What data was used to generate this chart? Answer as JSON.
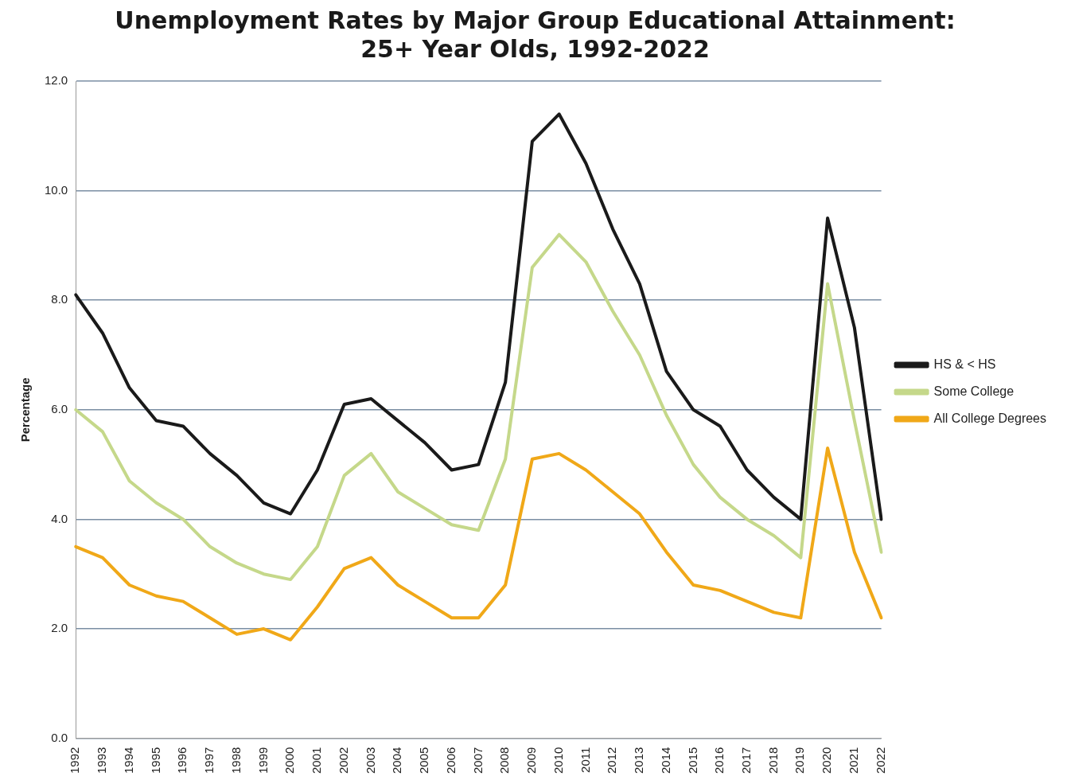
{
  "chart_data": {
    "type": "line",
    "title": [
      "Unemployment Rates by Major Group Educational Attainment:",
      "25+ Year Olds, 1992-2022"
    ],
    "ylabel": "Percentage",
    "categories": [
      "1992",
      "1993",
      "1994",
      "1995",
      "1996",
      "1997",
      "1998",
      "1999",
      "2000",
      "2001",
      "2002",
      "2003",
      "2004",
      "2005",
      "2006",
      "2007",
      "2008",
      "2009",
      "2010",
      "2011",
      "2012",
      "2013",
      "2014",
      "2015",
      "2016",
      "2017",
      "2018",
      "2019",
      "2020",
      "2021",
      "2022"
    ],
    "series": [
      {
        "name": "HS & < HS",
        "color": "#1a1a1a",
        "values": [
          8.1,
          7.4,
          6.4,
          5.8,
          5.7,
          5.2,
          4.8,
          4.3,
          4.1,
          4.9,
          6.1,
          6.2,
          5.8,
          5.4,
          4.9,
          5.0,
          6.5,
          10.9,
          11.4,
          10.5,
          9.3,
          8.3,
          6.7,
          6.0,
          5.7,
          4.9,
          4.4,
          4.0,
          9.5,
          7.5,
          4.0
        ]
      },
      {
        "name": "Some College",
        "color": "#c5d88a",
        "values": [
          6.0,
          5.6,
          4.7,
          4.3,
          4.0,
          3.5,
          3.2,
          3.0,
          2.9,
          3.5,
          4.8,
          5.2,
          4.5,
          4.2,
          3.9,
          3.8,
          5.1,
          8.6,
          9.2,
          8.7,
          7.8,
          7.0,
          5.9,
          5.0,
          4.4,
          4.0,
          3.7,
          3.3,
          8.3,
          5.8,
          3.4
        ]
      },
      {
        "name": "All College Degrees",
        "color": "#f0a818",
        "values": [
          3.5,
          3.3,
          2.8,
          2.6,
          2.5,
          2.2,
          1.9,
          2.0,
          1.8,
          2.4,
          3.1,
          3.3,
          2.8,
          2.5,
          2.2,
          2.2,
          2.8,
          5.1,
          5.2,
          4.9,
          4.5,
          4.1,
          3.4,
          2.8,
          2.7,
          2.5,
          2.3,
          2.2,
          5.3,
          3.4,
          2.2
        ]
      }
    ],
    "ylim": [
      0,
      12
    ],
    "yticks": [
      {
        "value": 0,
        "label": "0.0"
      },
      {
        "value": 2,
        "label": "2.0"
      },
      {
        "value": 4,
        "label": "4.0"
      },
      {
        "value": 6,
        "label": "6.0"
      },
      {
        "value": 8,
        "label": "8.0"
      },
      {
        "value": 10,
        "label": "10.0"
      },
      {
        "value": 12,
        "label": "12.0"
      }
    ],
    "grid": "y",
    "legend": "right",
    "marker": "none",
    "line_style": "solid"
  }
}
